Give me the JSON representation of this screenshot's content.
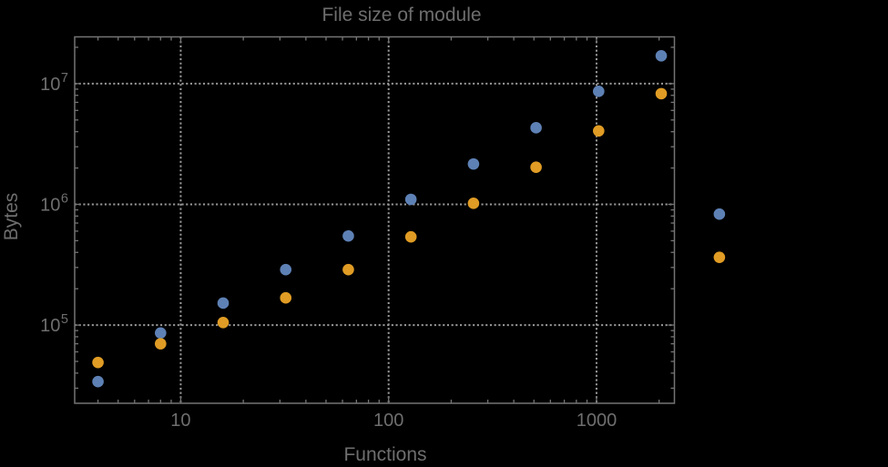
{
  "chart_data": {
    "type": "scatter",
    "title": "File size of module",
    "xlabel": "Functions",
    "ylabel": "Bytes",
    "x_scale": "log",
    "y_scale": "log",
    "grid": "dotted-major-decades",
    "legend": "none",
    "frame": true,
    "clipping": false,
    "x": [
      4,
      8,
      16,
      32,
      64,
      128,
      256,
      512,
      1024,
      2048,
      3900
    ],
    "series": [
      {
        "name": "series-blue",
        "color": "#5e81b5",
        "values": [
          34000,
          86000,
          152000,
          288000,
          547000,
          1100000,
          2160000,
          4310000,
          8630000,
          17000000,
          830000
        ]
      },
      {
        "name": "series-orange",
        "color": "#e09c24",
        "values": [
          49000,
          70000,
          105000,
          168000,
          288000,
          538000,
          1020000,
          2030000,
          4060000,
          8260000,
          364000
        ]
      }
    ],
    "x_ticks": [
      {
        "label": "10",
        "value": 10
      },
      {
        "label": "100",
        "value": 100
      },
      {
        "label": "1000",
        "value": 1000
      }
    ],
    "y_ticks": [
      {
        "base": "10",
        "exp": "5",
        "value": 100000
      },
      {
        "base": "10",
        "exp": "6",
        "value": 1000000
      },
      {
        "base": "10",
        "exp": "7",
        "value": 10000000
      }
    ],
    "xlim": [
      3.09,
      2370
    ],
    "ylim": [
      22500,
      24400000
    ],
    "colors": {
      "background": "#000000",
      "frame": "#747474",
      "grid": "#999999",
      "text": "#6e6e6e",
      "blue_marker": "#5e81b5",
      "orange_marker": "#e09c24"
    }
  }
}
